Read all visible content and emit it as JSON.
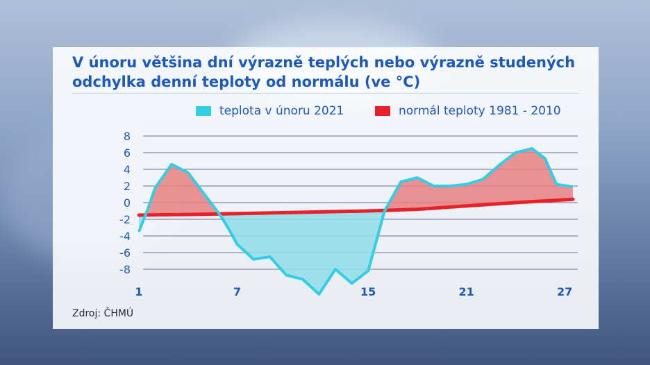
{
  "colors": {
    "title": "#1c59b8",
    "series_2021": "#33cde6",
    "series_normal": "#e8202a",
    "fill_warm": "#e88080",
    "fill_cold": "#8fdde8",
    "grid": "#6c6f9a"
  },
  "chart_data": {
    "type": "line",
    "title": "V únoru většina dní výrazně teplých nebo výrazně studených",
    "subtitle": "odchylka denní teploty od normálu (ve °C)",
    "xlabel": "",
    "ylabel": "",
    "x_ticks": [
      "1",
      "7",
      "15",
      "21",
      "27"
    ],
    "y_ticks": [
      "8",
      "6",
      "4",
      "2",
      "0",
      "-2",
      "-4",
      "-6",
      "-8"
    ],
    "xlim": [
      1,
      27.8
    ],
    "ylim": [
      -11,
      8
    ],
    "grid": true,
    "legend_position": "top",
    "series": [
      {
        "name": "teplota v únoru 2021",
        "x": [
          1,
          1.5,
          2,
          3,
          4,
          5,
          6,
          6.5,
          7,
          8,
          9,
          10,
          11,
          12,
          13,
          14,
          15,
          16,
          17,
          18,
          19,
          20,
          21,
          22,
          23,
          24,
          25,
          25.8,
          26.5,
          27.5
        ],
        "values": [
          -3.5,
          -1.0,
          1.8,
          4.6,
          3.6,
          1.0,
          -1.6,
          -3.2,
          -5.0,
          -6.8,
          -6.5,
          -8.7,
          -9.2,
          -11.0,
          -8.0,
          -9.7,
          -8.2,
          -1.0,
          2.5,
          3.0,
          2.0,
          2.0,
          2.2,
          2.8,
          4.5,
          6.0,
          6.5,
          5.3,
          2.2,
          1.9
        ]
      },
      {
        "name": "normál teploty 1981 - 2010",
        "x": [
          1,
          5,
          10,
          15,
          18,
          21,
          24,
          27.5
        ],
        "values": [
          -1.5,
          -1.4,
          -1.2,
          -1.0,
          -0.8,
          -0.4,
          0.0,
          0.4
        ]
      }
    ]
  },
  "legend": {
    "item1": "teplota v únoru 2021",
    "item2": "normál teploty 1981 - 2010"
  },
  "source": "Zdroj: ČHMÚ"
}
